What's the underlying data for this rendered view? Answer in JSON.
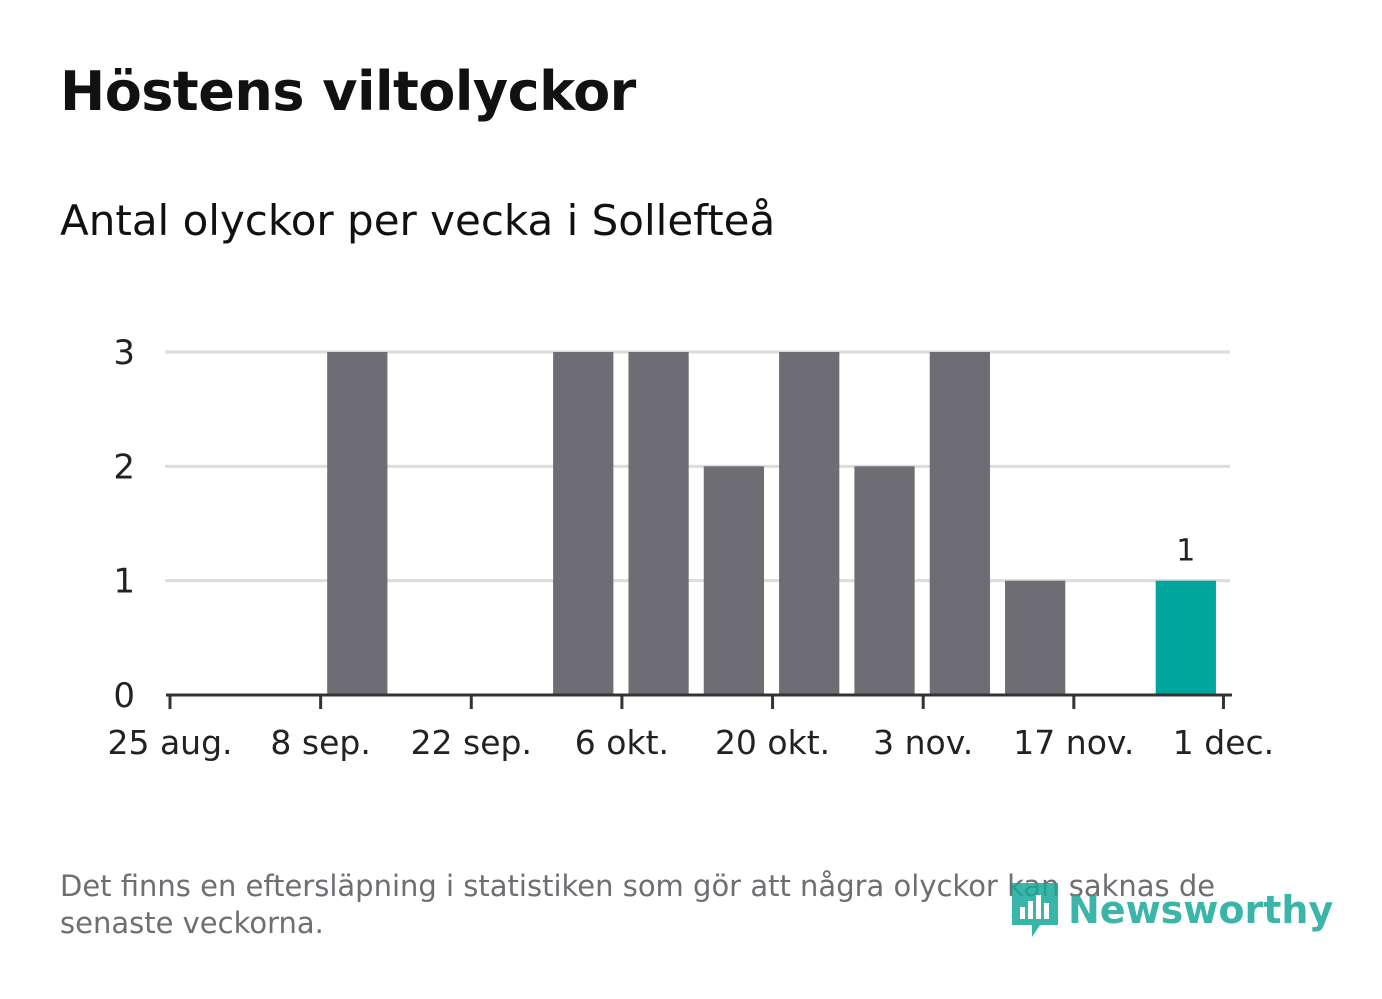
{
  "title": "Höstens viltolyckor",
  "subtitle": "Antal olyckor per vecka i Sollefteå",
  "footnote": "Det finns en eftersläpning i statistiken som gör att några olyckor kan saknas de senaste veckorna.",
  "logo": {
    "text": "Newsworthy",
    "icon": "newsworthy-logo-icon",
    "color": "#18a999"
  },
  "colors": {
    "bar": "#6e6d73",
    "highlight": "#00a59b",
    "grid": "#dcdcdc",
    "axis": "#333333"
  },
  "chart_data": {
    "type": "bar",
    "title": "Höstens viltolyckor",
    "subtitle": "Antal olyckor per vecka i Sollefteå",
    "xlabel": "",
    "ylabel": "",
    "ylim": [
      0,
      3
    ],
    "yticks": [
      "0",
      "1",
      "2",
      "3"
    ],
    "xticks": [
      "25 aug.",
      "8 sep.",
      "22 sep.",
      "6 okt.",
      "20 okt.",
      "3 nov.",
      "17 nov.",
      "1 dec."
    ],
    "categories": [
      "25 aug.",
      "1 sep.",
      "8 sep.",
      "15 sep.",
      "22 sep.",
      "29 sep.",
      "6 okt.",
      "13 okt.",
      "20 okt.",
      "27 okt.",
      "3 nov.",
      "10 nov.",
      "17 nov.",
      "24 nov."
    ],
    "values": [
      0,
      0,
      3,
      0,
      0,
      3,
      3,
      2,
      3,
      2,
      3,
      1,
      0,
      1
    ],
    "highlight_index": 13,
    "highlight_label": "1",
    "grid": true
  }
}
